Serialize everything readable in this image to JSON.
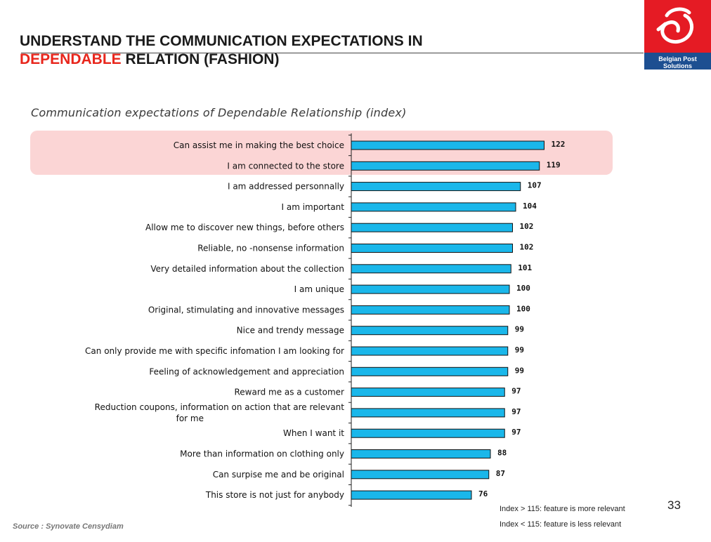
{
  "header": {
    "title_line1": "UNDERSTAND THE COMMUNICATION EXPECTATIONS IN",
    "title_accent": "DEPENDABLE",
    "title_rest": " RELATION (FASHION)"
  },
  "logo": {
    "text": "Belgian Post Solutions",
    "brand_red": "#e51b24",
    "brand_blue": "#1d4f91"
  },
  "subtitle": "Communication expectations of Dependable Relationship (index)",
  "legend": {
    "more": "Index > 115: feature is more relevant",
    "less": "Index < 115: feature is less relevant"
  },
  "page_number": "33",
  "source": "Source : Synovate Censydiam",
  "colors": {
    "bar": "#1ab7ea",
    "highlight": "#fbd5d5",
    "accent": "#e8261c"
  },
  "chart_data": {
    "type": "bar",
    "orientation": "horizontal",
    "categories": [
      "Can assist me in making the best choice",
      "I am connected to the store",
      "I am addressed personnally",
      "I am important",
      "Allow me to discover new things, before others",
      "Reliable, no -nonsense information",
      "Very detailed information about the collection",
      "I am unique",
      "Original, stimulating and innovative messages",
      "Nice and trendy message",
      "Can only provide me with specific infomation I am looking for",
      "Feeling of acknowledgement and appreciation",
      "Reward me as a customer",
      "Reduction coupons, information on action that are relevant for me",
      "When I want it",
      "More than information on clothing only",
      "Can surpise me and be original",
      "This store is not just for anybody"
    ],
    "values": [
      122,
      119,
      107,
      104,
      102,
      102,
      101,
      100,
      100,
      99,
      99,
      99,
      97,
      97,
      97,
      88,
      87,
      76
    ],
    "data_labels": [
      "122",
      "119",
      "107",
      "104",
      "102",
      "102",
      "101",
      "100",
      "100",
      "99",
      "99",
      "99",
      "97",
      "97",
      "97",
      "88",
      "87",
      "76"
    ],
    "highlighted": [
      "Can assist me in making the best choice",
      "I am connected to the store"
    ],
    "xlim": [
      0,
      150
    ],
    "grid": false
  }
}
